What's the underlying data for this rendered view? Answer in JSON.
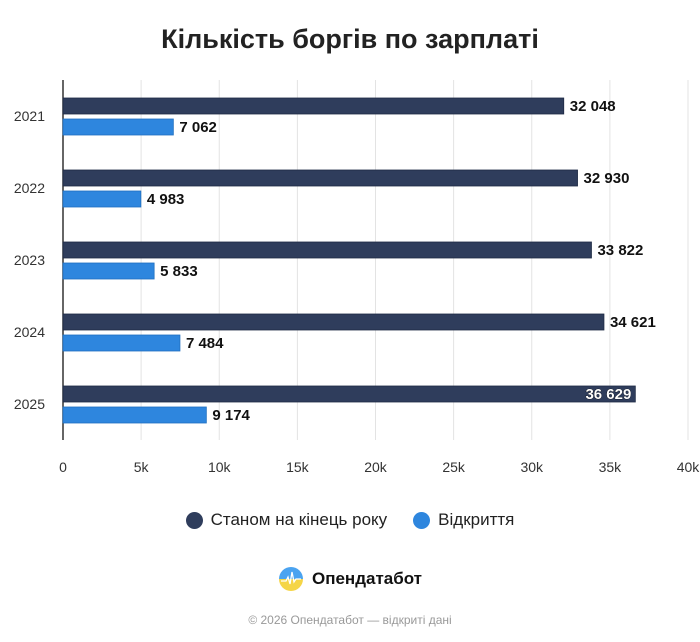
{
  "chart_data": {
    "type": "bar",
    "orientation": "horizontal",
    "title": "Кількість боргів по зарплаті",
    "categories": [
      "2021",
      "2022",
      "2023",
      "2024",
      "2025"
    ],
    "series": [
      {
        "name": "Станом на кінець року",
        "color": "#2f3d5c",
        "values": [
          32048,
          32930,
          33822,
          34621,
          36629
        ],
        "labels": [
          "32 048",
          "32 930",
          "33 822",
          "34 621",
          "36 629"
        ]
      },
      {
        "name": "Відкриття",
        "color": "#2e86de",
        "values": [
          7062,
          4983,
          5833,
          7484,
          9174
        ],
        "labels": [
          "7 062",
          "4 983",
          "5 833",
          "7 484",
          "9 174"
        ]
      }
    ],
    "xlim": [
      0,
      40000
    ],
    "xticks": [
      0,
      5000,
      10000,
      15000,
      20000,
      25000,
      30000,
      35000,
      40000
    ],
    "xtick_labels": [
      "0",
      "5k",
      "10k",
      "15k",
      "20k",
      "25k",
      "30k",
      "35k",
      "40k"
    ],
    "grid": true,
    "legend_position": "bottom"
  },
  "brand": {
    "name": "Опендатабот"
  },
  "footer": "© 2026 Опендатабот — відкриті дані"
}
